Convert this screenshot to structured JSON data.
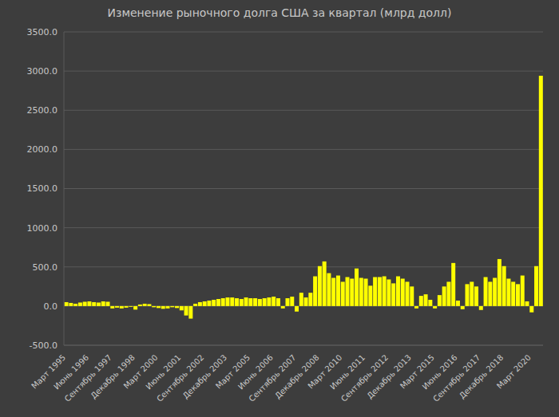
{
  "chart_data": {
    "type": "bar",
    "title": "Изменение рыночного долга США за квартал (млрд долл)",
    "categories": [
      "Март 1995",
      null,
      null,
      null,
      null,
      "Июнь 1996",
      null,
      null,
      null,
      null,
      "Сентябрь 1997",
      null,
      null,
      null,
      null,
      "Декабрь 1998",
      null,
      null,
      null,
      null,
      "Март 2000",
      null,
      null,
      null,
      null,
      "Июнь 2001",
      null,
      null,
      null,
      null,
      "Сентябрь 2002",
      null,
      null,
      null,
      null,
      "Декабрь 2003",
      null,
      null,
      null,
      null,
      "Март 2005",
      null,
      null,
      null,
      null,
      "Июнь 2006",
      null,
      null,
      null,
      null,
      "Сентябрь 2007",
      null,
      null,
      null,
      null,
      "Декабрь 2008",
      null,
      null,
      null,
      null,
      "Март 2010",
      null,
      null,
      null,
      null,
      "Июнь 2011",
      null,
      null,
      null,
      null,
      "Сентябрь 2012",
      null,
      null,
      null,
      null,
      "Декабрь 2013",
      null,
      null,
      null,
      null,
      "Март 2015",
      null,
      null,
      null,
      null,
      "Июнь 2016",
      null,
      null,
      null,
      null,
      "Сентябрь 2017",
      null,
      null,
      null,
      null,
      "Декабрь 2018",
      null,
      null,
      null,
      null,
      null,
      "Март 2020",
      null,
      null
    ],
    "values": [
      50,
      40,
      30,
      45,
      55,
      60,
      50,
      45,
      60,
      55,
      -30,
      -20,
      -30,
      -20,
      -10,
      -45,
      20,
      30,
      25,
      -15,
      -25,
      -35,
      -30,
      -15,
      -25,
      -55,
      -120,
      -160,
      30,
      50,
      60,
      70,
      80,
      90,
      100,
      110,
      110,
      100,
      90,
      110,
      100,
      100,
      90,
      100,
      110,
      120,
      100,
      -30,
      100,
      120,
      -70,
      170,
      110,
      170,
      380,
      510,
      570,
      420,
      360,
      390,
      310,
      370,
      350,
      480,
      360,
      350,
      260,
      370,
      370,
      380,
      340,
      290,
      380,
      350,
      310,
      250,
      -30,
      130,
      150,
      80,
      -30,
      140,
      250,
      310,
      550,
      70,
      -40,
      280,
      310,
      250,
      -50,
      370,
      310,
      360,
      600,
      510,
      350,
      310,
      280,
      390,
      60,
      -80,
      510,
      2940
    ],
    "color": "#ffff00",
    "ylim": [
      -500,
      3500
    ],
    "yticks": [
      {
        "value": -500,
        "label": "-500.0"
      },
      {
        "value": 0,
        "label": "0.0"
      },
      {
        "value": 500,
        "label": "500.0"
      },
      {
        "value": 1000,
        "label": "1000.0"
      },
      {
        "value": 1500,
        "label": "1500.0"
      },
      {
        "value": 2000,
        "label": "2000.0"
      },
      {
        "value": 2500,
        "label": "2500.0"
      },
      {
        "value": 3000,
        "label": "3000.0"
      },
      {
        "value": 3500,
        "label": "3500.0"
      }
    ],
    "grid": true
  }
}
